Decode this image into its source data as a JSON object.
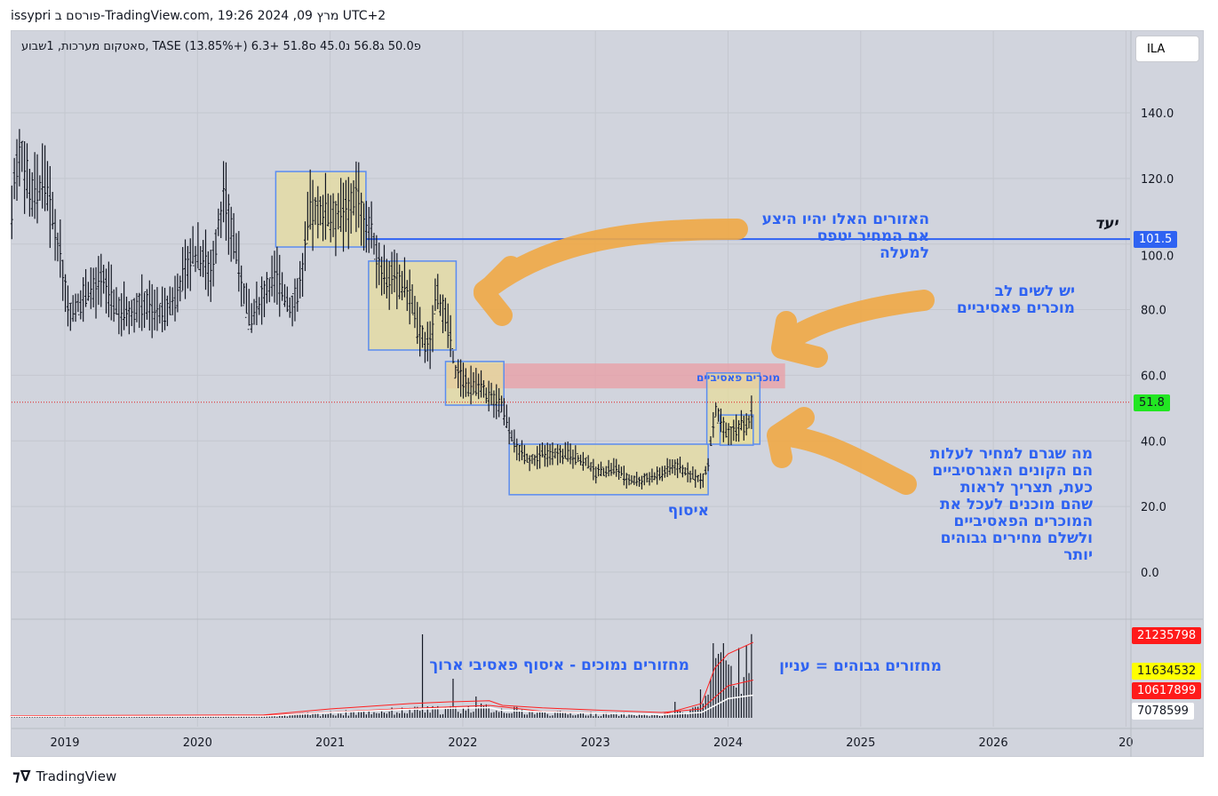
{
  "header": {
    "published": "issypri פורסם ב-TradingView.com, מרץ 09, 2024 19:26 UTC+2"
  },
  "legend": {
    "text": "סאטקום מערכות, 1שבוע, TASE  פ50.0  ג56.8  נ45.0  ס51.8  +6.3 (+13.85%)"
  },
  "currency": "ILA",
  "footer": {
    "brand": "TradingView"
  },
  "colors": {
    "background": "#d1d4dd",
    "target_line": "#2f63f2",
    "last_price": "#22e622",
    "box_fill": "#e6dc9c",
    "box_border": "#5b8cf0",
    "zone_fill": "#e8a0a8",
    "arrows": "#f0a845",
    "annotation": "#2f63f2",
    "volume_ma": "#ff2020"
  },
  "annotations": {
    "target_label": "יעד",
    "resistance_note": "האזורים האלו יהיו היצע\nאם המחיר יטפס\nלמעלה",
    "attention_note": "יש לשים לב\nמוכרים פאסיביים",
    "passive_sellers_label": "מוכרים פאסיביים",
    "accumulation_label": "איסוף",
    "buyers_note": "מה שגרם למחיר לעלות\nהם הקונים האגרסיביים\nכעת, תצריך לראות\nשהם מוכנים לעכל את\nהמוכרים הפאסיביים\nולשלם מחירים גבוהים\nיותר",
    "low_volume_note": "מחזורים נמוכים - איסוף פאסיבי ארוך",
    "high_volume_note": "מחזורים גבוהים = עניין"
  },
  "chart_data": {
    "type": "candlestick",
    "interval": "1W",
    "xlim": [
      2018.59,
      2027.0
    ],
    "ylim": [
      -8,
      150
    ],
    "grid": true,
    "x_ticks": [
      "2019",
      "2020",
      "2021",
      "2022",
      "2023",
      "2024",
      "2025",
      "2026",
      "20"
    ],
    "y_ticks": [
      "0.0",
      "20.0",
      "40.0",
      "60.0",
      "80.0",
      "100.0",
      "120.0",
      "140.0"
    ],
    "price_path": [
      [
        2018.6,
        110
      ],
      [
        2018.65,
        130
      ],
      [
        2018.75,
        115
      ],
      [
        2018.85,
        118
      ],
      [
        2018.95,
        100
      ],
      [
        2019.0,
        88
      ],
      [
        2019.05,
        78
      ],
      [
        2019.15,
        85
      ],
      [
        2019.3,
        88
      ],
      [
        2019.4,
        80
      ],
      [
        2019.5,
        80
      ],
      [
        2019.6,
        82
      ],
      [
        2019.75,
        78
      ],
      [
        2019.85,
        85
      ],
      [
        2019.95,
        97
      ],
      [
        2020.05,
        95
      ],
      [
        2020.1,
        92
      ],
      [
        2020.2,
        115
      ],
      [
        2020.28,
        100
      ],
      [
        2020.35,
        85
      ],
      [
        2020.4,
        75
      ],
      [
        2020.5,
        85
      ],
      [
        2020.6,
        90
      ],
      [
        2020.7,
        80
      ],
      [
        2020.78,
        88
      ],
      [
        2020.85,
        110
      ],
      [
        2020.95,
        110
      ],
      [
        2021.1,
        108
      ],
      [
        2021.2,
        115
      ],
      [
        2021.3,
        103
      ],
      [
        2021.4,
        92
      ],
      [
        2021.5,
        88
      ],
      [
        2021.6,
        85
      ],
      [
        2021.65,
        75
      ],
      [
        2021.75,
        68
      ],
      [
        2021.8,
        85
      ],
      [
        2021.85,
        80
      ],
      [
        2021.9,
        72
      ],
      [
        2021.95,
        60
      ],
      [
        2022.05,
        57
      ],
      [
        2022.15,
        55
      ],
      [
        2022.3,
        50
      ],
      [
        2022.4,
        38
      ],
      [
        2022.5,
        34
      ],
      [
        2022.6,
        36
      ],
      [
        2022.8,
        36
      ],
      [
        2022.95,
        33
      ],
      [
        2023.0,
        30
      ],
      [
        2023.15,
        32
      ],
      [
        2023.25,
        28
      ],
      [
        2023.35,
        28
      ],
      [
        2023.5,
        30
      ],
      [
        2023.6,
        33
      ],
      [
        2023.7,
        30
      ],
      [
        2023.8,
        28
      ],
      [
        2023.85,
        33
      ],
      [
        2023.9,
        50
      ],
      [
        2023.95,
        45
      ],
      [
        2024.0,
        42
      ],
      [
        2024.1,
        45
      ],
      [
        2024.15,
        44
      ],
      [
        2024.19,
        51.8
      ]
    ],
    "last_price": 51.8,
    "target_price": 101.5,
    "boxes": [
      {
        "x": [
          2020.59,
          2021.27
        ],
        "y": [
          99.1,
          122.1
        ]
      },
      {
        "x": [
          2021.29,
          2021.95
        ],
        "y": [
          67.7,
          94.8
        ]
      },
      {
        "x": [
          2021.87,
          2022.31
        ],
        "y": [
          50.9,
          64.2
        ]
      },
      {
        "x": [
          2022.35,
          2023.85
        ],
        "y": [
          23.6,
          39.0
        ]
      },
      {
        "x": [
          2023.84,
          2024.24
        ],
        "y": [
          39.0,
          60.7
        ]
      },
      {
        "x": [
          2023.94,
          2024.19
        ],
        "y": [
          38.7,
          47.9
        ]
      }
    ],
    "resistance_zone": {
      "x": [
        2021.88,
        2024.43
      ],
      "y": [
        56.0,
        63.6
      ]
    },
    "volume": {
      "spikes": [
        [
          2021.7,
          23500000
        ],
        [
          2021.92,
          11000000
        ],
        [
          2022.1,
          6000000
        ],
        [
          2023.6,
          4500000
        ],
        [
          2023.8,
          8000000
        ],
        [
          2023.88,
          21000000
        ],
        [
          2023.92,
          18000000
        ],
        [
          2023.96,
          21000000
        ],
        [
          2024.0,
          15000000
        ],
        [
          2024.05,
          9000000
        ],
        [
          2024.19,
          13000000
        ]
      ],
      "ma_long": [
        [
          2018.59,
          600000
        ],
        [
          2020.5,
          800000
        ],
        [
          2021.0,
          2500000
        ],
        [
          2021.6,
          4000000
        ],
        [
          2021.9,
          4500000
        ],
        [
          2022.2,
          4800000
        ],
        [
          2022.3,
          3500000
        ],
        [
          2022.6,
          2800000
        ],
        [
          2023.0,
          2200000
        ],
        [
          2023.5,
          1500000
        ],
        [
          2023.8,
          2500000
        ],
        [
          2024.0,
          9000000
        ],
        [
          2024.19,
          10617899
        ]
      ],
      "ma_short": [
        [
          2018.59,
          400000
        ],
        [
          2020.5,
          700000
        ],
        [
          2021.5,
          2500000
        ],
        [
          2022.2,
          3500000
        ],
        [
          2022.6,
          1800000
        ],
        [
          2023.5,
          900000
        ],
        [
          2023.8,
          4000000
        ],
        [
          2023.9,
          14000000
        ],
        [
          2024.0,
          18000000
        ],
        [
          2024.19,
          21235798
        ]
      ],
      "labels": [
        "21235798",
        "11634532",
        "10617899",
        "7078599"
      ]
    }
  }
}
